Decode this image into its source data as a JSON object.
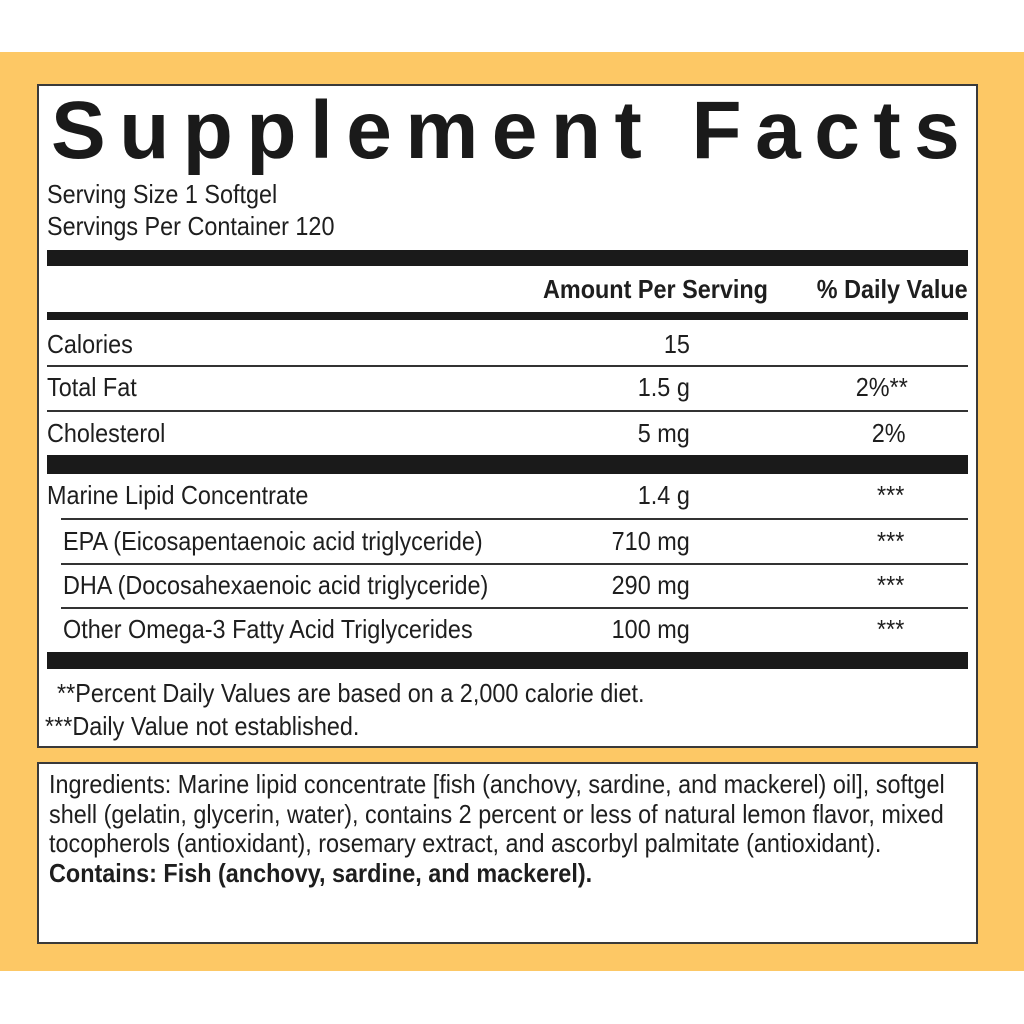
{
  "colors": {
    "background_band": "#fdc865",
    "text": "#1e1e1e"
  },
  "title": "Supplement Facts",
  "serving_size": "Serving Size 1 Softgel",
  "servings_per_container": "Servings Per Container 120",
  "columns": {
    "amount": "Amount Per Serving",
    "daily_value": "% Daily Value"
  },
  "rows": [
    {
      "name": "Calories",
      "amount": "15",
      "dv": ""
    },
    {
      "name": "Total Fat",
      "amount": "1.5 g",
      "dv": "2%**"
    },
    {
      "name": "Cholesterol",
      "amount": "5 mg",
      "dv": "2%"
    },
    {
      "name": "Marine Lipid Concentrate",
      "amount": "1.4 g",
      "dv": "***"
    },
    {
      "name": "EPA (Eicosapentaenoic acid triglyceride)",
      "amount": "710 mg",
      "dv": "***"
    },
    {
      "name": "DHA (Docosahexaenoic acid triglyceride)",
      "amount": "290 mg",
      "dv": "***"
    },
    {
      "name": "Other Omega-3 Fatty Acid Triglycerides",
      "amount": "100 mg",
      "dv": "***"
    }
  ],
  "footnotes": [
    "**Percent Daily Values are based on a 2,000 calorie diet.",
    "***Daily Value not established."
  ],
  "ingredients": "Ingredients: Marine lipid concentrate [fish (anchovy, sardine, and mackerel) oil], softgel shell (gelatin, glycerin, water), contains 2 percent or less of natural lemon flavor, mixed tocopherols (antioxidant), rosemary extract, and ascorbyl palmitate (antioxidant).",
  "contains": "Contains: Fish (anchovy, sardine, and mackerel)."
}
